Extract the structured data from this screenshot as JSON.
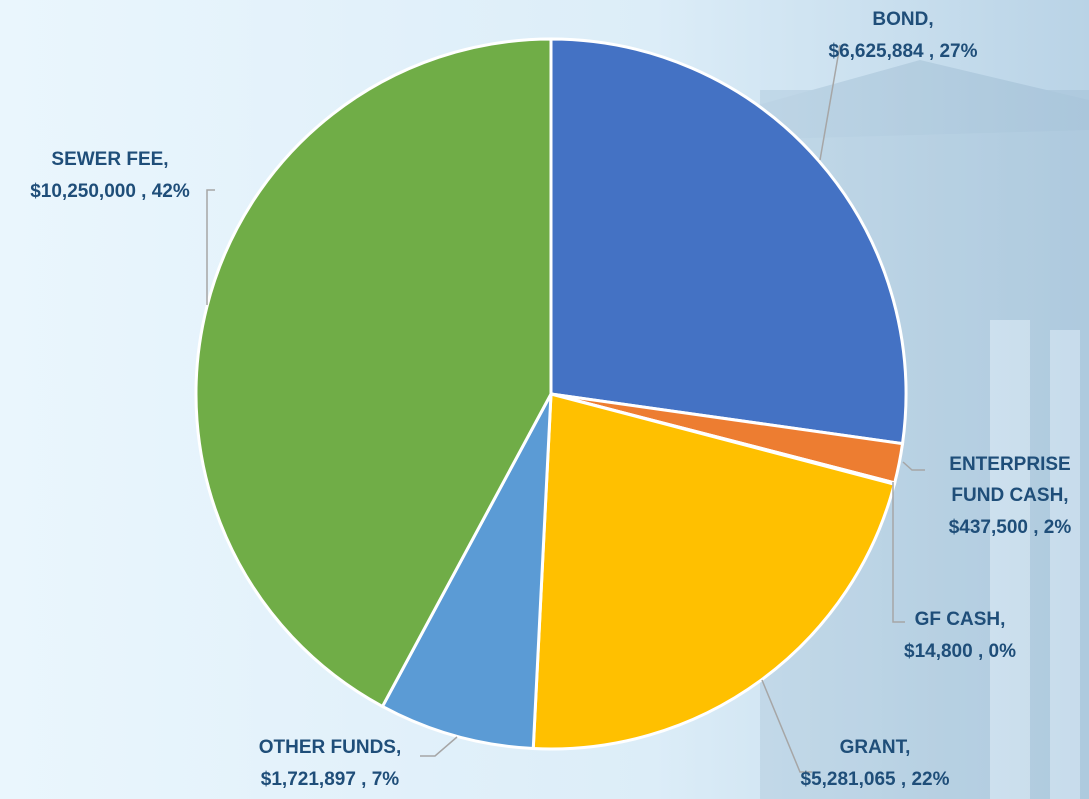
{
  "chart_data": {
    "type": "pie",
    "categories": [
      "BOND,",
      "ENTERPRISE FUND CASH,",
      "GF CASH,",
      "GRANT,",
      "OTHER FUNDS,",
      "SEWER FEE,"
    ],
    "values": [
      6625884,
      437500,
      14800,
      5281065,
      1721897,
      10250000
    ],
    "value_labels": [
      "$6,625,884 , 27%",
      "$437,500 , 2%",
      "$14,800 , 0%",
      "$5,281,065 , 22%",
      "$1,721,897 , 7%",
      "$10,250,000 , 42%"
    ],
    "colors": [
      "#4472c4",
      "#ed7d31",
      "#a5a5a5",
      "#ffc000",
      "#5b9bd5",
      "#70ad47"
    ]
  }
}
